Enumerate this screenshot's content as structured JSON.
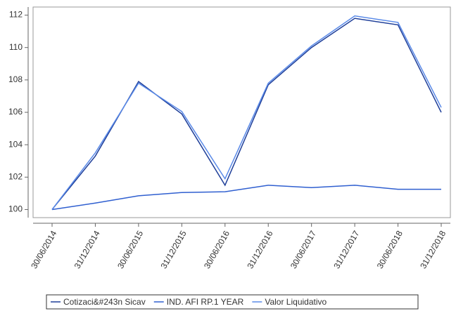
{
  "chart_data": {
    "type": "line",
    "categories": [
      "30/06/2014",
      "31/12/2014",
      "30/06/2015",
      "31/12/2015",
      "30/06/2016",
      "31/12/2016",
      "30/06/2017",
      "31/12/2017",
      "30/06/2018",
      "31/12/2018"
    ],
    "series": [
      {
        "name": "Cotizaci&#243n Sicav",
        "color": "#1f3f99",
        "values": [
          100,
          103.3,
          107.9,
          105.9,
          101.5,
          107.7,
          110.0,
          111.8,
          111.4,
          106.0
        ]
      },
      {
        "name": "IND. AFI RP.1 YEAR",
        "color": "#2f5fd0",
        "values": [
          100,
          100.4,
          100.85,
          101.05,
          101.1,
          101.5,
          101.35,
          101.5,
          101.25,
          101.25
        ]
      },
      {
        "name": "Valor Liquidativo",
        "color": "#5a8ae8",
        "values": [
          100,
          103.5,
          107.8,
          106.05,
          101.9,
          107.8,
          110.1,
          111.95,
          111.55,
          106.3
        ]
      }
    ],
    "ylim": [
      99.5,
      112.5
    ],
    "yticks": [
      100,
      102,
      104,
      106,
      108,
      110,
      112
    ],
    "grid": false,
    "legend": "bottom"
  }
}
